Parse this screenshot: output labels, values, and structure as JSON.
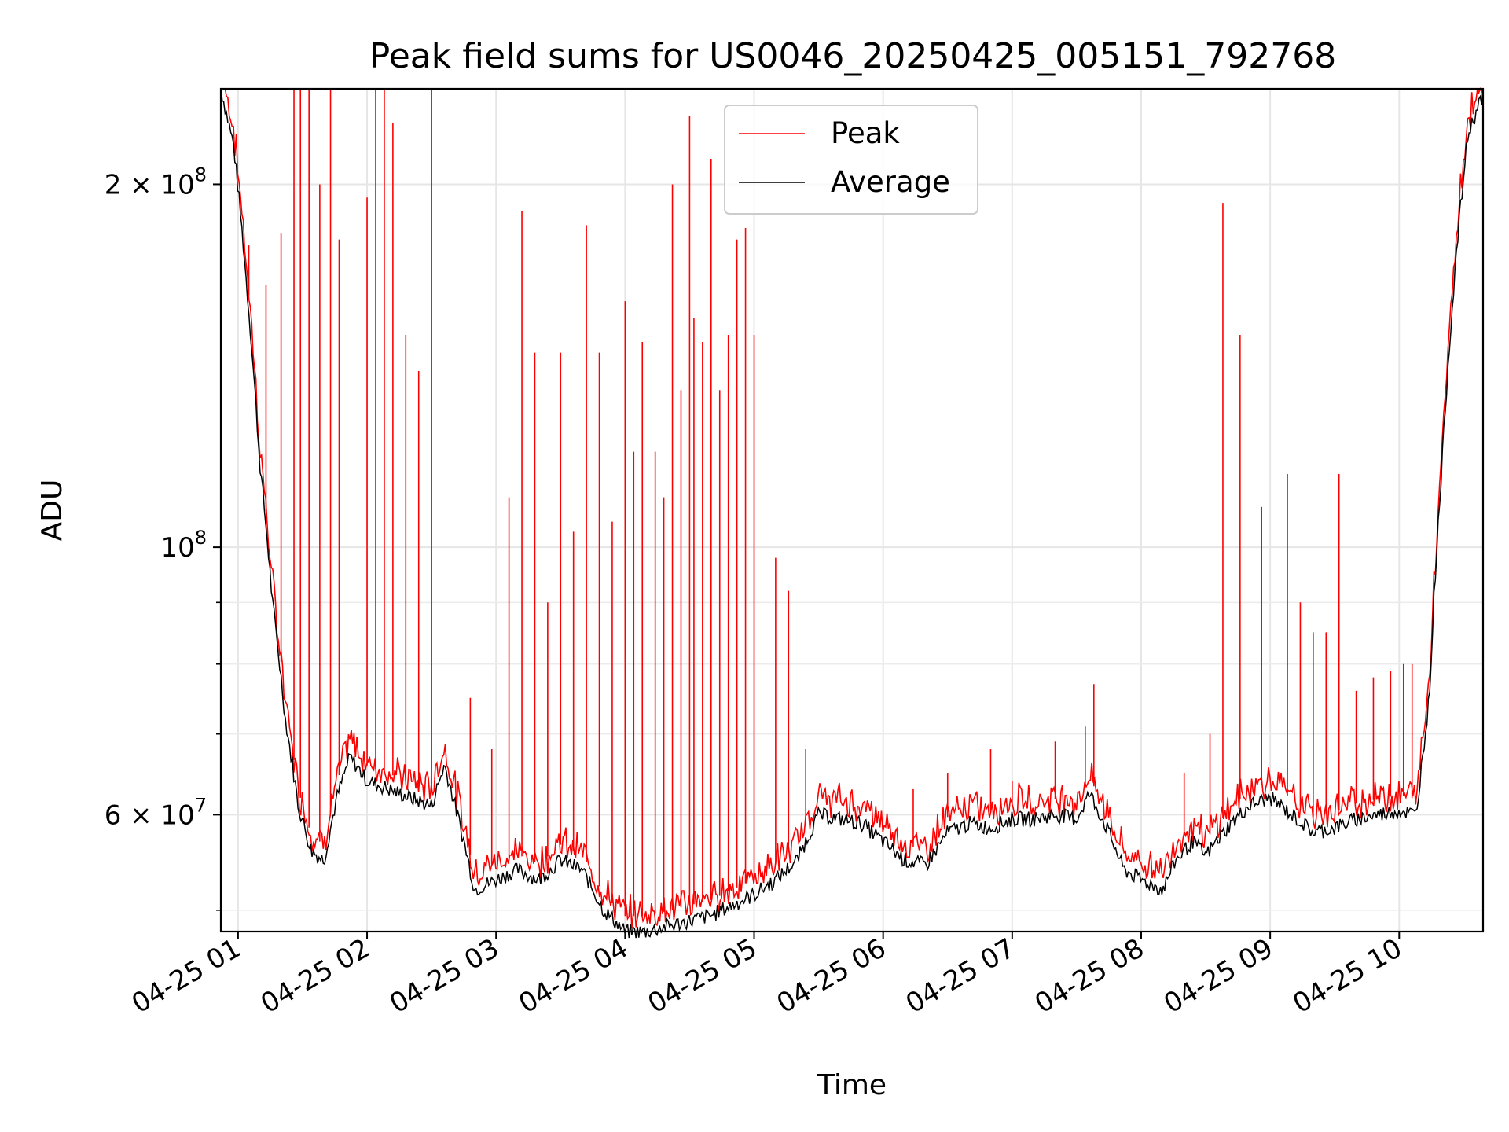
{
  "chart_data": {
    "type": "line",
    "title": "Peak field sums for US0046_20250425_005151_792768",
    "xlabel": "Time",
    "ylabel": "ADU",
    "yscale": "log",
    "xlim": [
      "2025-04-25T00:52",
      "2025-04-25T10:39"
    ],
    "ylim": [
      48000000,
      240000000
    ],
    "grid": true,
    "legend_position": "top-center",
    "x_ticks": [
      "04-25 01",
      "04-25 02",
      "04-25 03",
      "04-25 04",
      "04-25 05",
      "04-25 06",
      "04-25 07",
      "04-25 08",
      "04-25 09",
      "04-25 10"
    ],
    "y_ticks": [
      {
        "value": 60000000,
        "label": "6 × 10^7"
      },
      {
        "value": 100000000,
        "label": "10^8"
      },
      {
        "value": 200000000,
        "label": "2 × 10^8"
      }
    ],
    "series": [
      {
        "name": "Average",
        "color": "#000000",
        "x": [
          "2025-04-25T00:52",
          "2025-04-25T00:58",
          "2025-04-25T01:04",
          "2025-04-25T01:10",
          "2025-04-25T01:16",
          "2025-04-25T01:22",
          "2025-04-25T01:28",
          "2025-04-25T01:34",
          "2025-04-25T01:40",
          "2025-04-25T01:46",
          "2025-04-25T01:52",
          "2025-04-25T02:00",
          "2025-04-25T02:10",
          "2025-04-25T02:20",
          "2025-04-25T02:30",
          "2025-04-25T02:36",
          "2025-04-25T02:42",
          "2025-04-25T02:50",
          "2025-04-25T03:00",
          "2025-04-25T03:10",
          "2025-04-25T03:20",
          "2025-04-25T03:30",
          "2025-04-25T03:40",
          "2025-04-25T03:50",
          "2025-04-25T04:00",
          "2025-04-25T04:10",
          "2025-04-25T04:20",
          "2025-04-25T04:30",
          "2025-04-25T04:40",
          "2025-04-25T04:50",
          "2025-04-25T05:00",
          "2025-04-25T05:10",
          "2025-04-25T05:20",
          "2025-04-25T05:30",
          "2025-04-25T05:40",
          "2025-04-25T05:50",
          "2025-04-25T06:00",
          "2025-04-25T06:10",
          "2025-04-25T06:20",
          "2025-04-25T06:30",
          "2025-04-25T06:40",
          "2025-04-25T06:50",
          "2025-04-25T07:00",
          "2025-04-25T07:10",
          "2025-04-25T07:20",
          "2025-04-25T07:30",
          "2025-04-25T07:36",
          "2025-04-25T07:44",
          "2025-04-25T07:52",
          "2025-04-25T08:00",
          "2025-04-25T08:10",
          "2025-04-25T08:16",
          "2025-04-25T08:24",
          "2025-04-25T08:30",
          "2025-04-25T08:40",
          "2025-04-25T08:50",
          "2025-04-25T09:00",
          "2025-04-25T09:10",
          "2025-04-25T09:20",
          "2025-04-25T09:30",
          "2025-04-25T09:40",
          "2025-04-25T09:50",
          "2025-04-25T10:00",
          "2025-04-25T10:08",
          "2025-04-25T10:14",
          "2025-04-25T10:20",
          "2025-04-25T10:26",
          "2025-04-25T10:32",
          "2025-04-25T10:39"
        ],
        "values": [
          240000000,
          215000000,
          165000000,
          118000000,
          90000000,
          72000000,
          61000000,
          56000000,
          55000000,
          62000000,
          67000000,
          64000000,
          63000000,
          62000000,
          61000000,
          66000000,
          60000000,
          52000000,
          53000000,
          54000000,
          53000000,
          55000000,
          54000000,
          50000000,
          48000000,
          48000000,
          48500000,
          49000000,
          49500000,
          50500000,
          51500000,
          53000000,
          55000000,
          60000000,
          59500000,
          59000000,
          57000000,
          55000000,
          54500000,
          58000000,
          59000000,
          58500000,
          59500000,
          59500000,
          60000000,
          59500000,
          62500000,
          58500000,
          54000000,
          53000000,
          52000000,
          55000000,
          57000000,
          55500000,
          58500000,
          61000000,
          62000000,
          60000000,
          58000000,
          58500000,
          59500000,
          60000000,
          60500000,
          60000000,
          75000000,
          118000000,
          170000000,
          220000000,
          238000000
        ]
      },
      {
        "name": "Peak",
        "color": "#ff0000",
        "spikes": [
          [
            "2025-04-25T01:05",
            178000000
          ],
          [
            "2025-04-25T01:13",
            165000000
          ],
          [
            "2025-04-25T01:20",
            182000000
          ],
          [
            "2025-04-25T01:26",
            245000000
          ],
          [
            "2025-04-25T01:29",
            240000000
          ],
          [
            "2025-04-25T01:33",
            245000000
          ],
          [
            "2025-04-25T01:38",
            200000000
          ],
          [
            "2025-04-25T01:43",
            245000000
          ],
          [
            "2025-04-25T01:47",
            180000000
          ],
          [
            "2025-04-25T02:00",
            195000000
          ],
          [
            "2025-04-25T02:04",
            245000000
          ],
          [
            "2025-04-25T02:08",
            245000000
          ],
          [
            "2025-04-25T02:12",
            225000000
          ],
          [
            "2025-04-25T02:18",
            150000000
          ],
          [
            "2025-04-25T02:24",
            140000000
          ],
          [
            "2025-04-25T02:30",
            245000000
          ],
          [
            "2025-04-25T02:48",
            75000000
          ],
          [
            "2025-04-25T02:58",
            68000000
          ],
          [
            "2025-04-25T03:06",
            110000000
          ],
          [
            "2025-04-25T03:12",
            190000000
          ],
          [
            "2025-04-25T03:18",
            145000000
          ],
          [
            "2025-04-25T03:24",
            90000000
          ],
          [
            "2025-04-25T03:30",
            145000000
          ],
          [
            "2025-04-25T03:36",
            103000000
          ],
          [
            "2025-04-25T03:42",
            185000000
          ],
          [
            "2025-04-25T03:48",
            145000000
          ],
          [
            "2025-04-25T03:54",
            105000000
          ],
          [
            "2025-04-25T04:00",
            160000000
          ],
          [
            "2025-04-25T04:04",
            120000000
          ],
          [
            "2025-04-25T04:08",
            148000000
          ],
          [
            "2025-04-25T04:14",
            120000000
          ],
          [
            "2025-04-25T04:18",
            110000000
          ],
          [
            "2025-04-25T04:22",
            200000000
          ],
          [
            "2025-04-25T04:26",
            135000000
          ],
          [
            "2025-04-25T04:30",
            228000000
          ],
          [
            "2025-04-25T04:32",
            155000000
          ],
          [
            "2025-04-25T04:36",
            148000000
          ],
          [
            "2025-04-25T04:40",
            210000000
          ],
          [
            "2025-04-25T04:44",
            135000000
          ],
          [
            "2025-04-25T04:48",
            150000000
          ],
          [
            "2025-04-25T04:52",
            180000000
          ],
          [
            "2025-04-25T04:56",
            184000000
          ],
          [
            "2025-04-25T05:00",
            150000000
          ],
          [
            "2025-04-25T05:10",
            98000000
          ],
          [
            "2025-04-25T05:16",
            92000000
          ],
          [
            "2025-04-25T05:24",
            68000000
          ],
          [
            "2025-04-25T06:14",
            63000000
          ],
          [
            "2025-04-25T06:30",
            65000000
          ],
          [
            "2025-04-25T06:50",
            68000000
          ],
          [
            "2025-04-25T07:00",
            64000000
          ],
          [
            "2025-04-25T07:20",
            69000000
          ],
          [
            "2025-04-25T07:34",
            71000000
          ],
          [
            "2025-04-25T07:38",
            77000000
          ],
          [
            "2025-04-25T08:20",
            65000000
          ],
          [
            "2025-04-25T08:32",
            70000000
          ],
          [
            "2025-04-25T08:38",
            193000000
          ],
          [
            "2025-04-25T08:46",
            150000000
          ],
          [
            "2025-04-25T08:56",
            108000000
          ],
          [
            "2025-04-25T09:08",
            115000000
          ],
          [
            "2025-04-25T09:14",
            90000000
          ],
          [
            "2025-04-25T09:20",
            85000000
          ],
          [
            "2025-04-25T09:26",
            85000000
          ],
          [
            "2025-04-25T09:32",
            115000000
          ],
          [
            "2025-04-25T09:40",
            76000000
          ],
          [
            "2025-04-25T09:48",
            78000000
          ],
          [
            "2025-04-25T09:56",
            79000000
          ],
          [
            "2025-04-25T10:02",
            80000000
          ],
          [
            "2025-04-25T10:06",
            80000000
          ]
        ]
      }
    ]
  }
}
